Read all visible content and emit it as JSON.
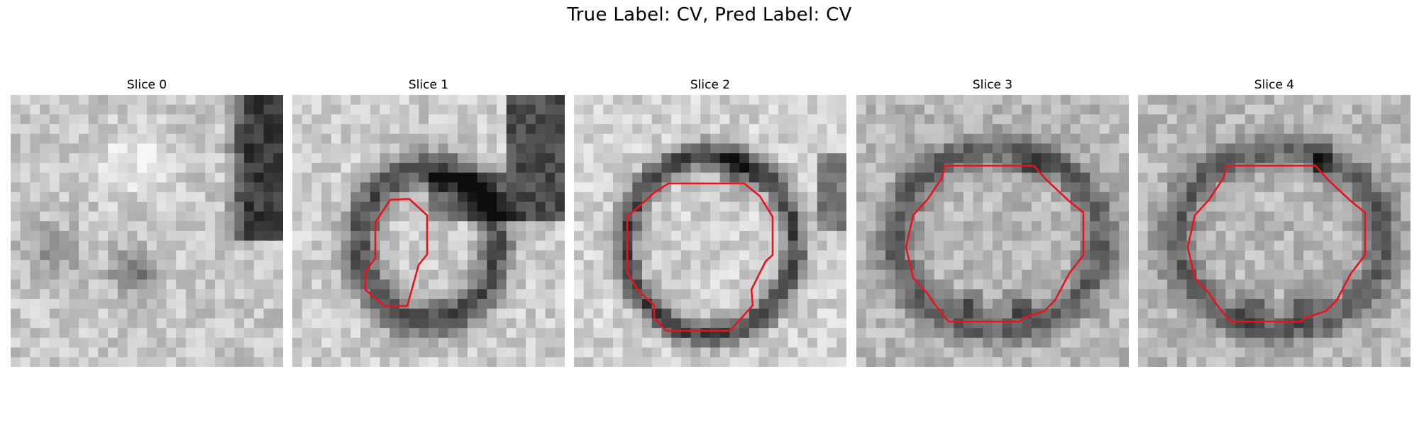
{
  "figure": {
    "title": "True Label: CV, Pred Label: CV"
  },
  "slices": [
    {
      "title": "Slice 0",
      "has_contour": false
    },
    {
      "title": "Slice 1",
      "has_contour": true
    },
    {
      "title": "Slice 2",
      "has_contour": true
    },
    {
      "title": "Slice 3",
      "has_contour": true
    },
    {
      "title": "Slice 4",
      "has_contour": true
    }
  ],
  "colors": {
    "contour": "#e8141c",
    "background": "#ffffff"
  }
}
